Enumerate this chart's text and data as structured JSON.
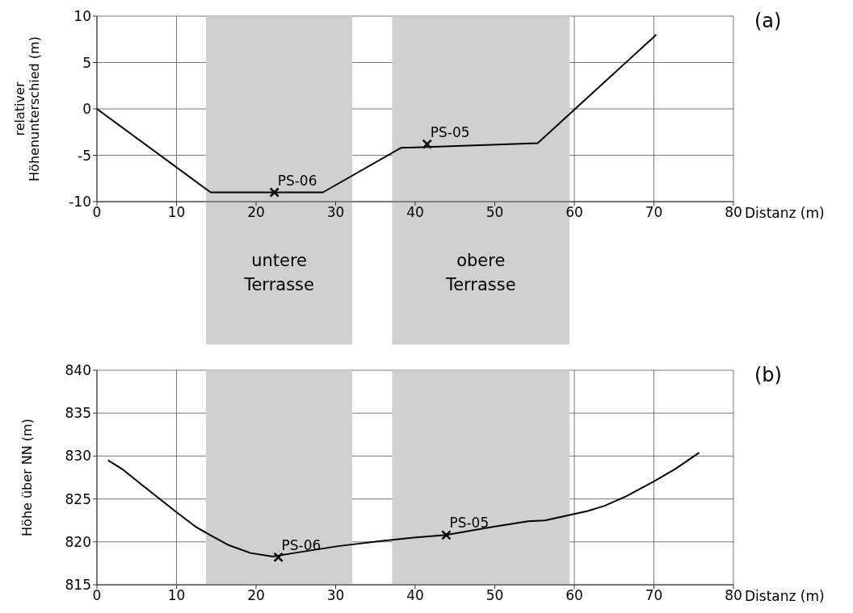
{
  "chart_data": [
    {
      "type": "line",
      "xlabel": "Distanz (m)",
      "ylabel": "relativer Höhenunterschied (m)",
      "xlim": [
        0,
        80
      ],
      "xticks": [
        0,
        10,
        20,
        30,
        40,
        50,
        60,
        70,
        80
      ],
      "ylim": [
        -10,
        10
      ],
      "yticks": [
        -10,
        -5,
        0,
        5,
        10
      ],
      "grid": true,
      "line_style": "solid",
      "series": [
        {
          "color": "#000000",
          "x": [
            0,
            14.3,
            28.4,
            38.2,
            55.4,
            70.3
          ],
          "values": [
            0,
            -9,
            -9,
            -4.2,
            -3.7,
            8
          ]
        },
        {
          "type": "scatter",
          "marker": "cross",
          "color": "#000000",
          "x": [
            22.3,
            41.5
          ],
          "values": [
            -9,
            -3.8
          ]
        }
      ],
      "bands": [
        {
          "axis": "x",
          "from": 13.7,
          "to": 32.1,
          "label": "untere Terrasse",
          "color": "#d0d0d0"
        },
        {
          "axis": "x",
          "from": 37.1,
          "to": 59.4,
          "label": "obere Terrasse",
          "color": "#d0d0d0"
        }
      ],
      "annotations": [
        "(a)",
        {
          "text": "PS-06",
          "x": 22.3,
          "y": -9
        },
        {
          "text": "PS-05",
          "x": 41.5,
          "y": -3.8
        }
      ]
    },
    {
      "type": "line",
      "xlabel": "Distanz (m)",
      "ylabel": "Höhe über NN (m)",
      "xlim": [
        0,
        80
      ],
      "xticks": [
        0,
        10,
        20,
        30,
        40,
        50,
        60,
        70,
        80
      ],
      "ylim": [
        815,
        840
      ],
      "yticks": [
        815,
        820,
        825,
        830,
        835,
        840
      ],
      "grid": true,
      "line_style": "solid",
      "series": [
        {
          "color": "#000000",
          "x": [
            1.4,
            3.3,
            5.7,
            9.8,
            12.5,
            14.6,
            16.6,
            19.3,
            22.1,
            24.8,
            30.3,
            35.7,
            39.8,
            43.9,
            49.4,
            54.2,
            56.3,
            61.7,
            63.8,
            66.5,
            69.9,
            72.7,
            75.7
          ],
          "values": [
            829.5,
            828.4,
            826.6,
            823.6,
            821.7,
            820.6,
            819.6,
            818.7,
            818.3,
            818.7,
            819.5,
            820.1,
            820.5,
            820.8,
            821.7,
            822.4,
            822.5,
            823.6,
            824.2,
            825.3,
            827,
            828.5,
            830.4
          ]
        },
        {
          "type": "scatter",
          "marker": "cross",
          "color": "#000000",
          "x": [
            22.8,
            43.9
          ],
          "values": [
            818.2,
            820.8
          ]
        }
      ],
      "bands": [
        {
          "axis": "x",
          "from": 13.7,
          "to": 32.1,
          "color": "#d0d0d0"
        },
        {
          "axis": "x",
          "from": 37.1,
          "to": 59.4,
          "color": "#d0d0d0"
        }
      ],
      "annotations": [
        "(b)",
        {
          "text": "PS-06",
          "x": 22.8,
          "y": 818.2
        },
        {
          "text": "PS-05",
          "x": 43.9,
          "y": 820.8
        }
      ]
    }
  ]
}
